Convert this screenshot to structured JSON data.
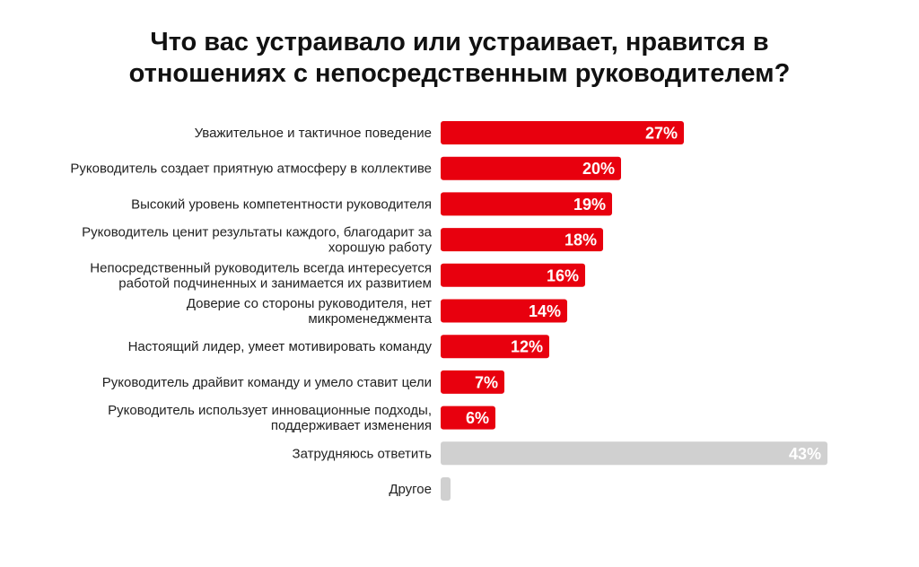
{
  "chart_data": {
    "type": "bar",
    "orientation": "horizontal",
    "title_lines": [
      "Что вас устраивало или устраивает, нравится в",
      "отношениях с непосредственным руководителем?"
    ],
    "categories": [
      [
        "Уважительное и тактичное поведение"
      ],
      [
        "Руководитель создает приятную атмосферу в коллективе"
      ],
      [
        "Высокий уровень компетентности руководителя"
      ],
      [
        "Руководитель ценит результаты каждого, благодарит за",
        "хорошую работу"
      ],
      [
        "Непосредственный руководитель всегда интересуется",
        "работой подчиненных и занимается их развитием"
      ],
      [
        "Доверие со стороны руководителя, нет",
        "микроменеджмента"
      ],
      [
        "Настоящий лидер, умеет мотивировать команду"
      ],
      [
        "Руководитель драйвит команду и умело ставит цели"
      ],
      [
        "Руководитель использует инновационные подходы,",
        "поддерживает изменения"
      ],
      [
        "Затрудняюсь ответить"
      ],
      [
        "Другое"
      ]
    ],
    "values": [
      27,
      20,
      19,
      18,
      16,
      14,
      12,
      7,
      6,
      43,
      1
    ],
    "value_labels": [
      "27%",
      "20%",
      "19%",
      "18%",
      "16%",
      "14%",
      "12%",
      "7%",
      "6%",
      "43%",
      ""
    ],
    "bar_colors": [
      "#e8000e",
      "#e8000e",
      "#e8000e",
      "#e8000e",
      "#e8000e",
      "#e8000e",
      "#e8000e",
      "#e8000e",
      "#e8000e",
      "#d0d0d0",
      "#d0d0d0"
    ],
    "grid": false,
    "legend": "none"
  }
}
